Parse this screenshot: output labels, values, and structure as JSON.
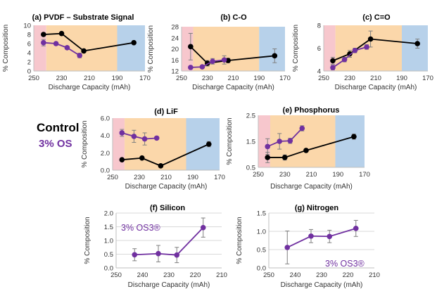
{
  "legend": {
    "control": "Control",
    "os": "3% OS"
  },
  "colors": {
    "control": "#000000",
    "os": "#7030a0",
    "pink": "#f7c7cd",
    "orange": "#fbd7aa",
    "blue": "#b7d1ea",
    "grid": "#d9d9d9",
    "axis": "#bfbfbf",
    "errbar": "#7f7f7f"
  },
  "chart_data": [
    {
      "id": "pvdf",
      "type": "line",
      "title": "(a) PVDF – Substrate Signal",
      "xlabel": "Discharge Capacity (mAh)",
      "ylabel": "% Composition",
      "xlim": [
        250,
        170
      ],
      "ylim": [
        0,
        10
      ],
      "x_ticks": [
        250,
        230,
        210,
        190,
        170
      ],
      "y_ticks": [
        0,
        2,
        4,
        6,
        8,
        10
      ],
      "bands": [
        {
          "from": 250,
          "to": 241,
          "color": "pink"
        },
        {
          "from": 241,
          "to": 190,
          "color": "orange"
        },
        {
          "from": 190,
          "to": 170,
          "color": "blue"
        }
      ],
      "series": [
        {
          "key": "control",
          "points": [
            [
              243,
              8.0,
              0.3
            ],
            [
              230,
              8.2,
              0.2
            ],
            [
              214,
              4.4,
              0.3
            ],
            [
              178,
              6.2,
              0.3
            ]
          ]
        },
        {
          "key": "os",
          "points": [
            [
              243,
              6.2,
              0.7
            ],
            [
              234,
              6.0,
              0.3
            ],
            [
              226,
              5.1,
              0.3
            ],
            [
              217,
              3.4,
              0.5
            ]
          ]
        }
      ]
    },
    {
      "id": "co",
      "type": "line",
      "title": "(b) C-O",
      "xlabel": "Discharge Capacity (mAh)",
      "ylabel": "% Composition",
      "xlim": [
        250,
        170
      ],
      "ylim": [
        12,
        28
      ],
      "x_ticks": [
        250,
        230,
        210,
        190,
        170
      ],
      "y_ticks": [
        12,
        16,
        20,
        24,
        28
      ],
      "bands": [
        {
          "from": 250,
          "to": 241,
          "color": "pink"
        },
        {
          "from": 241,
          "to": 190,
          "color": "orange"
        },
        {
          "from": 190,
          "to": 170,
          "color": "blue"
        }
      ],
      "series": [
        {
          "key": "control",
          "points": [
            [
              243,
              20.8,
              4.8
            ],
            [
              230,
              14.8,
              1.0
            ],
            [
              214,
              15.8,
              0.8
            ],
            [
              178,
              17.5,
              2.5
            ]
          ]
        },
        {
          "key": "os",
          "points": [
            [
              243,
              13.3,
              0.4
            ],
            [
              234,
              13.5,
              0.3
            ],
            [
              226,
              15.5,
              1.0
            ],
            [
              217,
              16.0,
              1.5
            ]
          ]
        }
      ]
    },
    {
      "id": "ceo",
      "type": "line",
      "title": "(c) C=O",
      "xlabel": "Discharge Capacity (mAh)",
      "ylabel": "% Composition",
      "xlim": [
        250,
        170
      ],
      "ylim": [
        4,
        8
      ],
      "x_ticks": [
        250,
        230,
        210,
        190,
        170
      ],
      "y_ticks": [
        4,
        6,
        8
      ],
      "bands": [
        {
          "from": 250,
          "to": 241,
          "color": "pink"
        },
        {
          "from": 241,
          "to": 190,
          "color": "orange"
        },
        {
          "from": 190,
          "to": 170,
          "color": "blue"
        }
      ],
      "series": [
        {
          "key": "control",
          "points": [
            [
              243,
              4.9,
              0.3
            ],
            [
              230,
              5.5,
              0.3
            ],
            [
              214,
              6.8,
              0.7
            ],
            [
              178,
              6.4,
              0.4
            ]
          ]
        },
        {
          "key": "os",
          "points": [
            [
              243,
              4.3,
              0.2
            ],
            [
              234,
              5.0,
              0.2
            ],
            [
              226,
              5.8,
              0.2
            ],
            [
              217,
              6.1,
              0.2
            ]
          ]
        }
      ]
    },
    {
      "id": "lif",
      "type": "line",
      "title": "(d) LiF",
      "xlabel": "Discharge Capacity (mAh)",
      "ylabel": "% Composition",
      "xlim": [
        250,
        170
      ],
      "ylim": [
        0,
        6
      ],
      "x_ticks": [
        250,
        230,
        210,
        190,
        170
      ],
      "y_ticks": [
        0.0,
        2.0,
        4.0,
        6.0
      ],
      "y_tick_labels": [
        "0.0",
        "2.0",
        "4.0",
        "6.0"
      ],
      "bands": [
        {
          "from": 250,
          "to": 241,
          "color": "pink"
        },
        {
          "from": 241,
          "to": 195,
          "color": "orange"
        },
        {
          "from": 195,
          "to": 170,
          "color": "blue"
        }
      ],
      "series": [
        {
          "key": "control",
          "points": [
            [
              243,
              1.2,
              0
            ],
            [
              228,
              1.4,
              0
            ],
            [
              214,
              0.5,
              0
            ],
            [
              178,
              3.0,
              0.3
            ]
          ]
        },
        {
          "key": "os",
          "points": [
            [
              243,
              4.3,
              0.4
            ],
            [
              234,
              3.9,
              0.7
            ],
            [
              226,
              3.6,
              0.7
            ],
            [
              217,
              3.7,
              0.1
            ]
          ]
        }
      ]
    },
    {
      "id": "phos",
      "type": "line",
      "title": "(e) Phosphorus",
      "xlabel": "Discharge Capacity (mAh)",
      "ylabel": "% Composition",
      "xlim": [
        250,
        170
      ],
      "ylim": [
        0.5,
        2.5
      ],
      "x_ticks": [
        250,
        230,
        210,
        190,
        170
      ],
      "y_ticks": [
        0.5,
        1.5,
        2.5
      ],
      "y_tick_labels": [
        "0.5",
        "1.5",
        "2.5"
      ],
      "bands": [
        {
          "from": 250,
          "to": 241,
          "color": "pink"
        },
        {
          "from": 241,
          "to": 192,
          "color": "orange"
        },
        {
          "from": 192,
          "to": 170,
          "color": "blue"
        }
      ],
      "series": [
        {
          "key": "control",
          "points": [
            [
              243,
              0.88,
              0.2
            ],
            [
              230,
              0.88,
              0.1
            ],
            [
              214,
              1.15,
              0
            ],
            [
              178,
              1.68,
              0.1
            ]
          ]
        },
        {
          "key": "os",
          "points": [
            [
              243,
              1.3,
              0.3
            ],
            [
              234,
              1.5,
              0.3
            ],
            [
              226,
              1.52,
              0.1
            ],
            [
              217,
              2.0,
              0.1
            ]
          ]
        }
      ]
    },
    {
      "id": "silicon",
      "type": "line",
      "title": "(f) Silicon",
      "xlabel": "Discharge Capacity (mAh)",
      "ylabel": "% Composition",
      "xlim": [
        250,
        210
      ],
      "ylim": [
        0,
        2
      ],
      "x_ticks": [
        250,
        240,
        230,
        220,
        210
      ],
      "y_ticks": [
        0,
        0.5,
        1,
        1.5,
        2
      ],
      "y_tick_labels": [
        "0.0",
        "0.5",
        "1.0",
        "1.5",
        "2.0"
      ],
      "grid": true,
      "inside_label": "3% OS3®",
      "series": [
        {
          "key": "os",
          "points": [
            [
              243,
              0.48,
              0.22
            ],
            [
              234,
              0.52,
              0.3
            ],
            [
              227,
              0.47,
              0.28
            ],
            [
              217,
              1.47,
              0.35
            ]
          ]
        }
      ]
    },
    {
      "id": "nitrogen",
      "type": "line",
      "title": "(g) Nitrogen",
      "xlabel": "Discharge Capacity (mAh)",
      "ylabel": "% Composition",
      "xlim": [
        250,
        210
      ],
      "ylim": [
        0,
        1.5
      ],
      "x_ticks": [
        250,
        240,
        230,
        220,
        210
      ],
      "y_ticks": [
        0,
        0.5,
        1,
        1.5
      ],
      "y_tick_labels": [
        "0.0",
        "0.5",
        "1.0",
        "1.5"
      ],
      "grid": true,
      "inside_label": "3% OS3®",
      "series": [
        {
          "key": "os",
          "points": [
            [
              243,
              0.56,
              0.45
            ],
            [
              234,
              0.87,
              0.18
            ],
            [
              227,
              0.86,
              0.17
            ],
            [
              217,
              1.08,
              0.22
            ]
          ]
        }
      ]
    }
  ]
}
